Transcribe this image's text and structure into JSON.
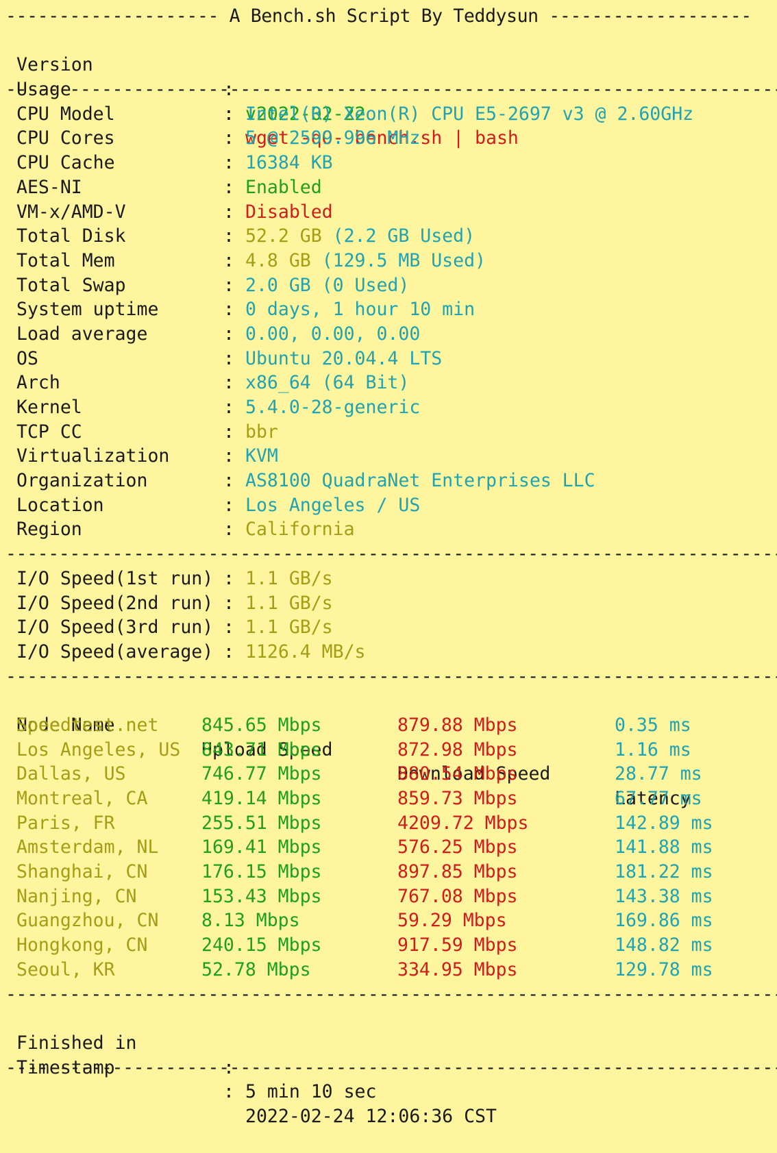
{
  "colors": {
    "background": "#fff59e",
    "text": "#1a1a1a",
    "green": "#1f9e1f",
    "red": "#d11c1c",
    "cyan": "#1fa3b3",
    "olive": "#a39e15"
  },
  "header": {
    "title": "-------------------- A Bench.sh Script By Teddysun -------------------",
    "version_label": "Version",
    "version_value": "v2022-02-22",
    "usage_label": "Usage",
    "usage_value": "wget -qO- bench.sh | bash"
  },
  "divider": "--------------------------------------------------------------------------------------",
  "system": [
    {
      "label": "CPU Model",
      "value": "Intel(R) Xeon(R) CPU E5-2697 v3 @ 2.60GHz",
      "color": "cyan"
    },
    {
      "label": "CPU Cores",
      "value": "5 @ 2599.996 MHz",
      "color": "cyan"
    },
    {
      "label": "CPU Cache",
      "value": "16384 KB",
      "color": "cyan"
    },
    {
      "label": "AES-NI",
      "value": "Enabled",
      "color": "green"
    },
    {
      "label": "VM-x/AMD-V",
      "value": "Disabled",
      "color": "red"
    },
    {
      "label": "Total Disk",
      "value_main": "52.2 GB",
      "value_extra": " (2.2 GB Used)",
      "color": "olive",
      "color_extra": "cyan"
    },
    {
      "label": "Total Mem",
      "value_main": "4.8 GB",
      "value_extra": " (129.5 MB Used)",
      "color": "olive",
      "color_extra": "cyan"
    },
    {
      "label": "Total Swap",
      "value": "2.0 GB (0 Used)",
      "color": "cyan"
    },
    {
      "label": "System uptime",
      "value": "0 days, 1 hour 10 min",
      "color": "cyan"
    },
    {
      "label": "Load average",
      "value": "0.00, 0.00, 0.00",
      "color": "cyan"
    },
    {
      "label": "OS",
      "value": "Ubuntu 20.04.4 LTS",
      "color": "cyan"
    },
    {
      "label": "Arch",
      "value": "x86_64 (64 Bit)",
      "color": "cyan"
    },
    {
      "label": "Kernel",
      "value": "5.4.0-28-generic",
      "color": "cyan"
    },
    {
      "label": "TCP CC",
      "value": "bbr",
      "color": "olive"
    },
    {
      "label": "Virtualization",
      "value": "KVM",
      "color": "cyan"
    },
    {
      "label": "Organization",
      "value": "AS8100 QuadraNet Enterprises LLC",
      "color": "cyan"
    },
    {
      "label": "Location",
      "value": "Los Angeles / US",
      "color": "cyan"
    },
    {
      "label": "Region",
      "value": "California",
      "color": "olive"
    }
  ],
  "io": [
    {
      "label": "I/O Speed(1st run)",
      "value": "1.1 GB/s"
    },
    {
      "label": "I/O Speed(2nd run)",
      "value": "1.1 GB/s"
    },
    {
      "label": "I/O Speed(3rd run)",
      "value": "1.1 GB/s"
    },
    {
      "label": "I/O Speed(average)",
      "value": "1126.4 MB/s"
    }
  ],
  "speedtest": {
    "headers": {
      "node": "Node Name",
      "upload": "Upload Speed",
      "download": "Download Speed",
      "latency": "Latency"
    },
    "rows": [
      {
        "node": "Speedtest.net",
        "upload": "845.65 Mbps",
        "download": "879.88 Mbps",
        "latency": "0.35 ms"
      },
      {
        "node": "Los Angeles, US",
        "upload": "843.71 Mbps",
        "download": "872.98 Mbps",
        "latency": "1.16 ms"
      },
      {
        "node": "Dallas, US",
        "upload": "746.77 Mbps",
        "download": "880.54 Mbps",
        "latency": "28.77 ms"
      },
      {
        "node": "Montreal, CA",
        "upload": "419.14 Mbps",
        "download": "859.73 Mbps",
        "latency": "67.77 ms"
      },
      {
        "node": "Paris, FR",
        "upload": "255.51 Mbps",
        "download": "4209.72 Mbps",
        "latency": "142.89 ms"
      },
      {
        "node": "Amsterdam, NL",
        "upload": "169.41 Mbps",
        "download": "576.25 Mbps",
        "latency": "141.88 ms"
      },
      {
        "node": "Shanghai, CN",
        "upload": "176.15 Mbps",
        "download": "897.85 Mbps",
        "latency": "181.22 ms"
      },
      {
        "node": "Nanjing, CN",
        "upload": "153.43 Mbps",
        "download": "767.08 Mbps",
        "latency": "143.38 ms"
      },
      {
        "node": "Guangzhou, CN",
        "upload": "8.13 Mbps",
        "download": "59.29 Mbps",
        "latency": "169.86 ms"
      },
      {
        "node": "Hongkong, CN",
        "upload": "240.15 Mbps",
        "download": "917.59 Mbps",
        "latency": "148.82 ms"
      },
      {
        "node": "Seoul, KR",
        "upload": "52.78 Mbps",
        "download": "334.95 Mbps",
        "latency": "129.78 ms"
      }
    ]
  },
  "footer": {
    "finished_label": "Finished in",
    "finished_value": "5 min 10 sec",
    "timestamp_label": "Timestamp",
    "timestamp_value": "2022-02-24 12:06:36 CST"
  }
}
